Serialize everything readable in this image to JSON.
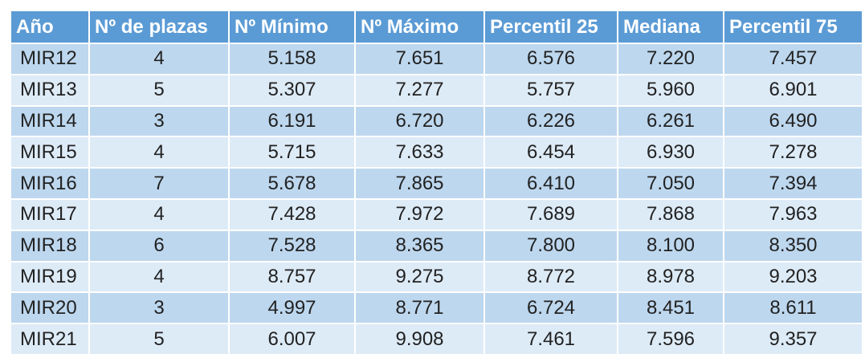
{
  "table": {
    "headers": [
      "Año",
      "Nº de plazas",
      "Nº Mínimo",
      "Nº Máximo",
      "Percentil 25",
      "Mediana",
      "Percentil 75"
    ],
    "rows": [
      [
        "MIR12",
        "4",
        "5.158",
        "7.651",
        "6.576",
        "7.220",
        "7.457"
      ],
      [
        "MIR13",
        "5",
        "5.307",
        "7.277",
        "5.757",
        "5.960",
        "6.901"
      ],
      [
        "MIR14",
        "3",
        "6.191",
        "6.720",
        "6.226",
        "6.261",
        "6.490"
      ],
      [
        "MIR15",
        "4",
        "5.715",
        "7.633",
        "6.454",
        "6.930",
        "7.278"
      ],
      [
        "MIR16",
        "7",
        "5.678",
        "7.865",
        "6.410",
        "7.050",
        "7.394"
      ],
      [
        "MIR17",
        "4",
        "7.428",
        "7.972",
        "7.689",
        "7.868",
        "7.963"
      ],
      [
        "MIR18",
        "6",
        "7.528",
        "8.365",
        "7.800",
        "8.100",
        "8.350"
      ],
      [
        "MIR19",
        "4",
        "8.757",
        "9.275",
        "8.772",
        "8.978",
        "9.203"
      ],
      [
        "MIR20",
        "3",
        "4.997",
        "8.771",
        "6.724",
        "8.451",
        "8.611"
      ],
      [
        "MIR21",
        "5",
        "6.007",
        "9.908",
        "7.461",
        "7.596",
        "9.357"
      ]
    ]
  },
  "colors": {
    "header_bg": "#5b9bd5",
    "row_band_dark": "#bdd7ee",
    "row_band_light": "#ddebf7"
  }
}
